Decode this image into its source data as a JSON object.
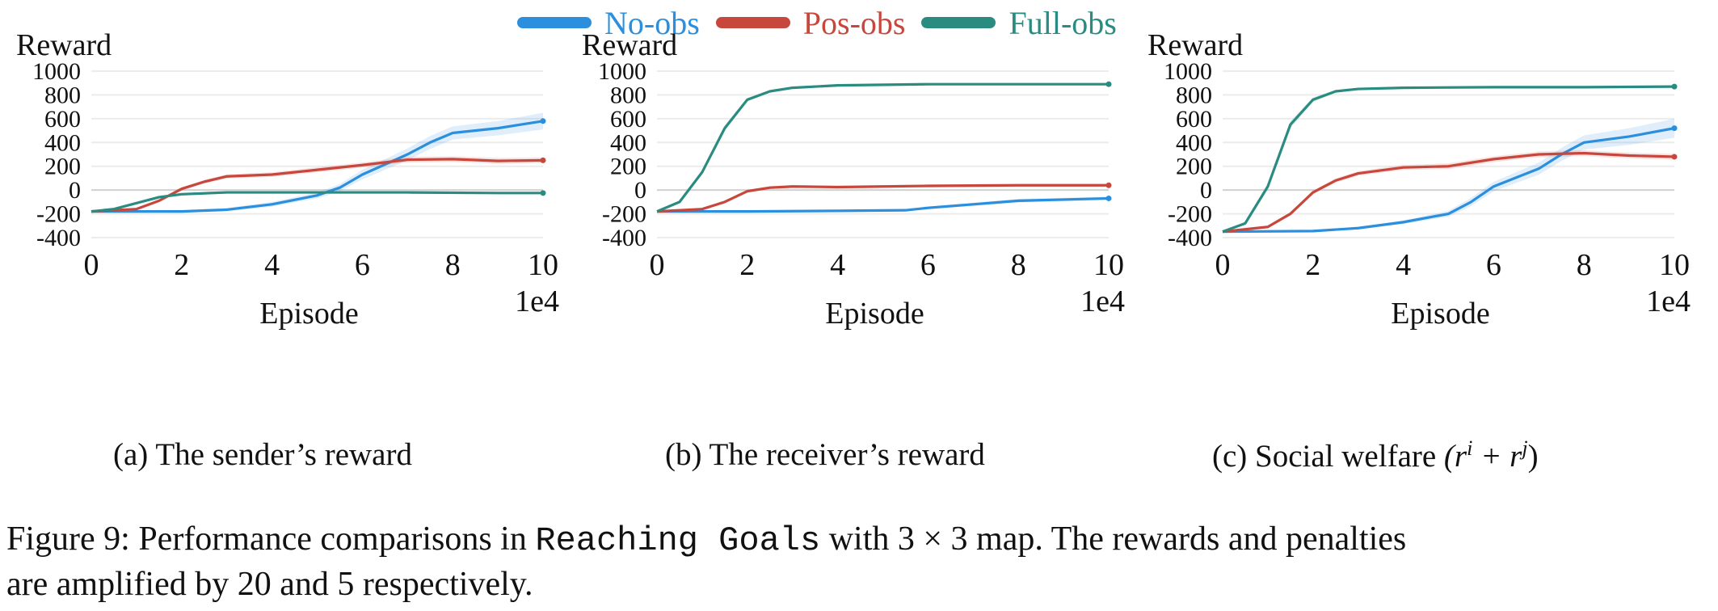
{
  "legend": [
    {
      "name": "No-obs",
      "color": "#2b8fdd"
    },
    {
      "name": "Pos-obs",
      "color": "#c8473c"
    },
    {
      "name": "Full-obs",
      "color": "#2a8c80"
    }
  ],
  "chart_data": [
    {
      "type": "line",
      "subcaption": "(a) The sender’s reward",
      "ylabel": "Reward",
      "xlabel": "Episode",
      "x_multiplier_label": "1e4",
      "xlim": [
        0,
        10
      ],
      "ylim": [
        -400,
        1000
      ],
      "xticks": [
        "0",
        "2",
        "4",
        "6",
        "8",
        "10"
      ],
      "yticks": [
        "1000",
        "800",
        "600",
        "400",
        "200",
        "0",
        "-200",
        "-400"
      ],
      "grid": "horizontal",
      "series": [
        {
          "name": "No-obs",
          "color": "#2b8fdd",
          "x": [
            0,
            1,
            2,
            3,
            4,
            5,
            5.5,
            6,
            7,
            7.5,
            8,
            9,
            10
          ],
          "y": [
            -180,
            -180,
            -180,
            -165,
            -120,
            -45,
            20,
            130,
            300,
            400,
            480,
            520,
            580
          ],
          "band": [
            10,
            10,
            12,
            15,
            20,
            25,
            30,
            40,
            50,
            55,
            55,
            60,
            70
          ]
        },
        {
          "name": "Pos-obs",
          "color": "#c8473c",
          "x": [
            0,
            1,
            1.5,
            2,
            2.5,
            3,
            4,
            5,
            6,
            7,
            8,
            9,
            10
          ],
          "y": [
            -180,
            -160,
            -90,
            10,
            70,
            115,
            130,
            170,
            210,
            255,
            260,
            245,
            250
          ],
          "band": [
            10,
            10,
            12,
            15,
            15,
            18,
            20,
            22,
            22,
            25,
            25,
            25,
            25
          ]
        },
        {
          "name": "Full-obs",
          "color": "#2a8c80",
          "x": [
            0,
            0.5,
            1,
            1.5,
            2,
            3,
            5,
            7,
            9,
            10
          ],
          "y": [
            -180,
            -160,
            -110,
            -60,
            -35,
            -20,
            -20,
            -20,
            -25,
            -25
          ],
          "band": [
            5,
            5,
            8,
            8,
            6,
            5,
            5,
            5,
            5,
            5
          ]
        }
      ]
    },
    {
      "type": "line",
      "subcaption": "(b) The receiver’s reward",
      "ylabel": "Reward",
      "xlabel": "Episode",
      "x_multiplier_label": "1e4",
      "xlim": [
        0,
        10
      ],
      "ylim": [
        -400,
        1000
      ],
      "xticks": [
        "0",
        "2",
        "4",
        "6",
        "8",
        "10"
      ],
      "yticks": [
        "1000",
        "800",
        "600",
        "400",
        "200",
        "0",
        "-200",
        "-400"
      ],
      "grid": "horizontal",
      "series": [
        {
          "name": "No-obs",
          "color": "#2b8fdd",
          "x": [
            0,
            2,
            4,
            5.5,
            6,
            7,
            8,
            9,
            10
          ],
          "y": [
            -180,
            -180,
            -175,
            -170,
            -150,
            -120,
            -90,
            -80,
            -70
          ],
          "band": [
            5,
            5,
            8,
            10,
            12,
            14,
            15,
            15,
            15
          ]
        },
        {
          "name": "Pos-obs",
          "color": "#c8473c",
          "x": [
            0,
            1,
            1.5,
            2,
            2.5,
            3,
            4,
            6,
            8,
            10
          ],
          "y": [
            -180,
            -160,
            -100,
            -10,
            20,
            30,
            25,
            35,
            40,
            40
          ],
          "band": [
            6,
            8,
            10,
            12,
            12,
            12,
            12,
            12,
            12,
            12
          ]
        },
        {
          "name": "Full-obs",
          "color": "#2a8c80",
          "x": [
            0,
            0.5,
            1,
            1.5,
            2,
            2.5,
            3,
            4,
            6,
            8,
            10
          ],
          "y": [
            -180,
            -100,
            150,
            520,
            760,
            830,
            860,
            880,
            890,
            890,
            890
          ],
          "band": [
            5,
            10,
            20,
            25,
            15,
            10,
            8,
            6,
            5,
            5,
            5
          ]
        }
      ]
    },
    {
      "type": "line",
      "subcaption": "(c) Social welfare",
      "ylabel": "Reward",
      "xlabel": "Episode",
      "x_multiplier_label": "1e4",
      "xlim": [
        0,
        10
      ],
      "ylim": [
        -400,
        1000
      ],
      "xticks": [
        "0",
        "2",
        "4",
        "6",
        "8",
        "10"
      ],
      "yticks": [
        "1000",
        "800",
        "600",
        "400",
        "200",
        "0",
        "-200",
        "-400"
      ],
      "grid": "horizontal",
      "series": [
        {
          "name": "No-obs",
          "color": "#2b8fdd",
          "x": [
            0,
            2,
            3,
            4,
            5,
            5.5,
            6,
            7,
            7.5,
            8,
            9,
            10
          ],
          "y": [
            -350,
            -345,
            -320,
            -270,
            -200,
            -100,
            30,
            180,
            300,
            400,
            450,
            520
          ],
          "band": [
            5,
            8,
            10,
            15,
            25,
            35,
            40,
            50,
            55,
            60,
            70,
            80
          ]
        },
        {
          "name": "Pos-obs",
          "color": "#c8473c",
          "x": [
            0,
            1,
            1.5,
            2,
            2.5,
            3,
            4,
            5,
            6,
            7,
            8,
            9,
            10
          ],
          "y": [
            -350,
            -310,
            -200,
            -20,
            80,
            140,
            190,
            200,
            260,
            300,
            310,
            290,
            280
          ],
          "band": [
            5,
            8,
            10,
            15,
            18,
            20,
            22,
            25,
            25,
            25,
            25,
            25,
            25
          ]
        },
        {
          "name": "Full-obs",
          "color": "#2a8c80",
          "x": [
            0,
            0.5,
            1,
            1.5,
            2,
            2.5,
            3,
            4,
            6,
            8,
            10
          ],
          "y": [
            -350,
            -280,
            30,
            550,
            760,
            830,
            850,
            860,
            865,
            865,
            870
          ],
          "band": [
            5,
            12,
            25,
            30,
            20,
            12,
            8,
            6,
            5,
            5,
            5
          ]
        }
      ]
    }
  ],
  "subcaption_c_math": "(r",
  "subcaption_c_sup_i": "i",
  "subcaption_c_plus": " + r",
  "subcaption_c_sup_j": "j",
  "subcaption_c_close": ")",
  "caption": {
    "part1": "Figure 9: Performance comparisons in ",
    "code": "Reaching Goals",
    "part2": " with 3 × 3 map. The rewards and penalties",
    "line2": "are amplified by 20 and 5 respectively."
  }
}
